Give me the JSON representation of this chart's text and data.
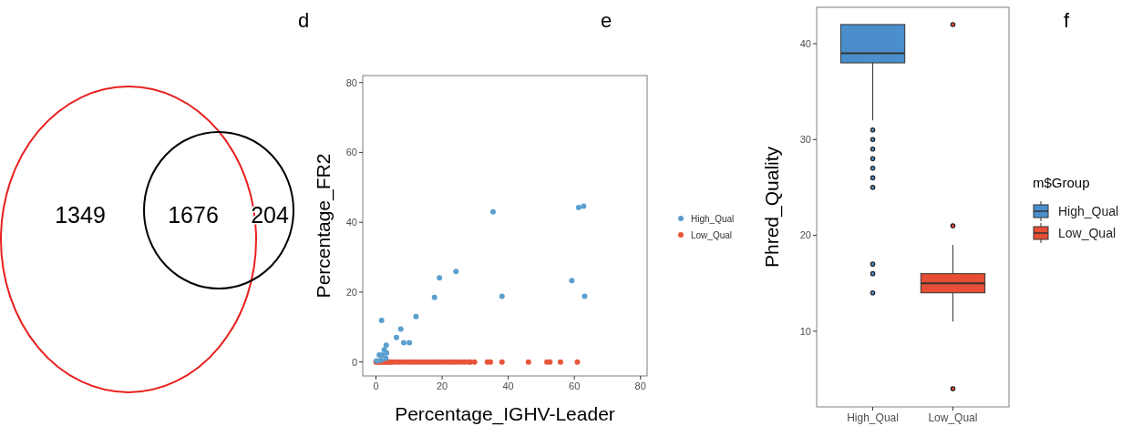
{
  "chart_data": [
    {
      "type": "other",
      "categories": [
        null,
        null,
        null
      ],
      "values": [
        1349,
        1676,
        204
      ],
      "data_labels": true,
      "annotations": [
        "d"
      ]
    },
    {
      "type": "scatter",
      "xlabel": "Percentage_IGHV-Leader",
      "ylabel": "Percentage_FR2",
      "xlim": [
        -4,
        82
      ],
      "ylim": [
        -4,
        82
      ],
      "xticks": [
        0,
        20,
        40,
        60,
        80
      ],
      "yticks": [
        0,
        20,
        40,
        60,
        80
      ],
      "grid": false,
      "legend": "right",
      "marker": "circle",
      "annotations": [
        "e"
      ],
      "series": [
        {
          "name": "Low_Qual",
          "color": "#e8553a",
          "x": [
            0,
            0.5,
            1,
            1.5,
            2,
            2.5,
            3,
            3.5,
            4,
            4.5,
            5,
            6,
            7,
            8,
            9,
            10,
            11,
            12,
            13,
            14,
            15,
            16,
            17,
            18,
            19,
            20,
            21,
            22,
            23,
            24,
            25,
            26,
            27,
            28.2,
            28.6,
            29.8,
            33.7,
            34.6,
            38.1,
            46.1,
            51.7,
            52.6,
            55.8,
            60.9
          ],
          "values": [
            0,
            0,
            0,
            0,
            0,
            0,
            0,
            0,
            0,
            0,
            0,
            0,
            0,
            0,
            0,
            0,
            0,
            0,
            0,
            0,
            0,
            0,
            0,
            0,
            0,
            0,
            0,
            0,
            0,
            0,
            0,
            0,
            0,
            0,
            0,
            0,
            0,
            0,
            0,
            0,
            0,
            0,
            0,
            0
          ]
        },
        {
          "name": "High_Qual",
          "color": "#5b9fd0",
          "x": [
            35.4,
            61.3,
            62.8,
            59.2,
            63.1,
            38.1,
            24.2,
            19.2,
            17.7,
            12.1,
            7.5,
            6.2,
            8.4,
            10.1,
            1.7,
            3.1,
            3.2,
            1,
            2,
            1.5,
            3,
            0.2,
            2.5
          ],
          "values": [
            43.0,
            44.2,
            44.6,
            23.3,
            18.8,
            18.8,
            25.9,
            24.1,
            18.5,
            13.0,
            9.4,
            7.0,
            5.5,
            5.5,
            11.9,
            4.8,
            2.6,
            2,
            2,
            0.5,
            1,
            0.3,
            3.5
          ]
        }
      ]
    },
    {
      "type": "box",
      "ylabel": "Phred_Quality",
      "categories": [
        "High_Qual",
        "Low_Qual"
      ],
      "ylim": [
        2.1,
        43.8
      ],
      "yticks": [
        10,
        20,
        30,
        40
      ],
      "grid": false,
      "legend": "right",
      "legend_title": "m$Group",
      "annotations": [
        "f"
      ],
      "series": [
        {
          "name": "High_Qual",
          "color": "#4a8fcb",
          "boxes": [
            {
              "low": 32,
              "q1": 38,
              "median": 39,
              "q3": 42,
              "high": 42,
              "outliers": [
                31,
                30,
                29,
                28,
                27,
                26,
                25,
                17,
                16,
                14
              ]
            },
            null
          ]
        },
        {
          "name": "Low_Qual",
          "color": "#e64e35",
          "boxes": [
            null,
            {
              "low": 11,
              "q1": 14,
              "median": 15,
              "q3": 16,
              "high": 19,
              "outliers": [
                21,
                42,
                4
              ]
            }
          ]
        }
      ]
    }
  ]
}
